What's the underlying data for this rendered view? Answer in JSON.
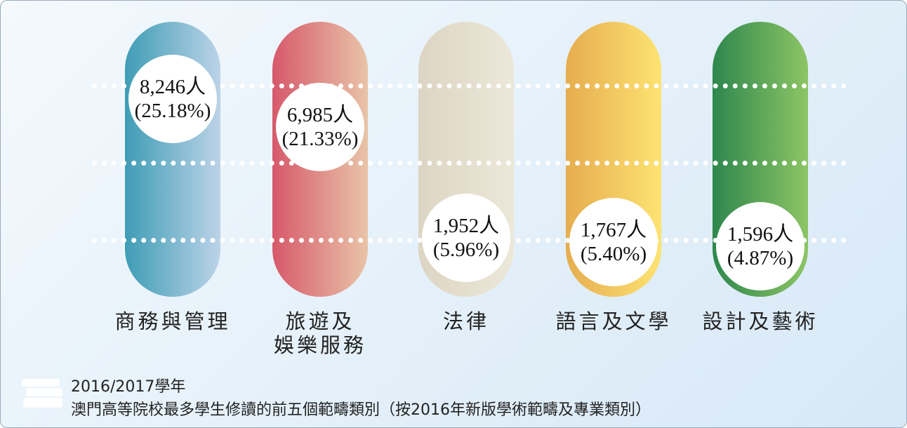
{
  "chart_data": {
    "type": "bar",
    "categories": [
      "商務與管理",
      "旅遊及\n娛樂服務",
      "法律",
      "語言及文學",
      "設計及藝術"
    ],
    "series": [
      {
        "values": [
          8246,
          6985,
          1952,
          1767,
          1596
        ],
        "value_labels": [
          "8,246人",
          "6,985人",
          "1,952人",
          "1,767人",
          "1,596人"
        ]
      },
      {
        "values": [
          25.18,
          21.33,
          5.96,
          5.4,
          4.87
        ],
        "value_labels": [
          "(25.18%)",
          "(21.33%)",
          "(5.96%)",
          "(5.40%)",
          "(4.87%)"
        ]
      }
    ],
    "colors": [
      [
        "#3f9db5",
        "#bcd3e8"
      ],
      [
        "#d6596b",
        "#e9c4a8"
      ],
      [
        "#ddd5c3",
        "#ece8d9"
      ],
      [
        "#e6ad4f",
        "#fde372"
      ],
      [
        "#2e874d",
        "#8dc565"
      ]
    ],
    "caption": [
      "2016/2017學年",
      "澳門高等院校最多學生修讀的前五個範疇類別（按2016年新版學術範疇及專業類別）"
    ]
  }
}
